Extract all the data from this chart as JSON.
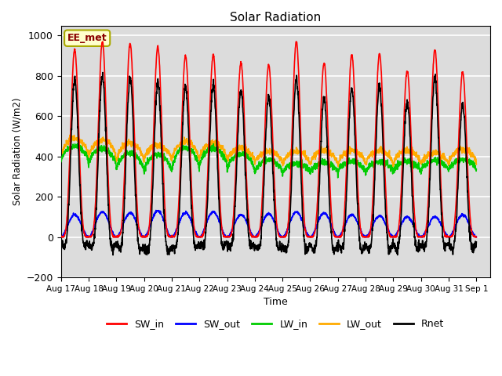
{
  "title": "Solar Radiation",
  "ylabel": "Solar Radiation (W/m2)",
  "xlabel": "Time",
  "ylim": [
    -200,
    1050
  ],
  "xlim_days": 15.5,
  "background_color": "#dcdcdc",
  "grid_color": "white",
  "legend_label": "EE_met",
  "series": {
    "SW_in": {
      "color": "#ff0000",
      "lw": 1.2
    },
    "SW_out": {
      "color": "#0000ff",
      "lw": 1.2
    },
    "LW_in": {
      "color": "#00cc00",
      "lw": 1.2
    },
    "LW_out": {
      "color": "#ffaa00",
      "lw": 1.2
    },
    "Rnet": {
      "color": "#000000",
      "lw": 1.2
    }
  },
  "tick_dates": [
    "Aug 17",
    "Aug 18",
    "Aug 19",
    "Aug 20",
    "Aug 21",
    "Aug 22",
    "Aug 23",
    "Aug 24",
    "Aug 25",
    "Aug 26",
    "Aug 27",
    "Aug 28",
    "Aug 29",
    "Aug 30",
    "Aug 31",
    "Sep 1"
  ],
  "yticks": [
    -200,
    0,
    200,
    400,
    600,
    800,
    1000
  ],
  "n_days": 15,
  "points_per_day": 144
}
